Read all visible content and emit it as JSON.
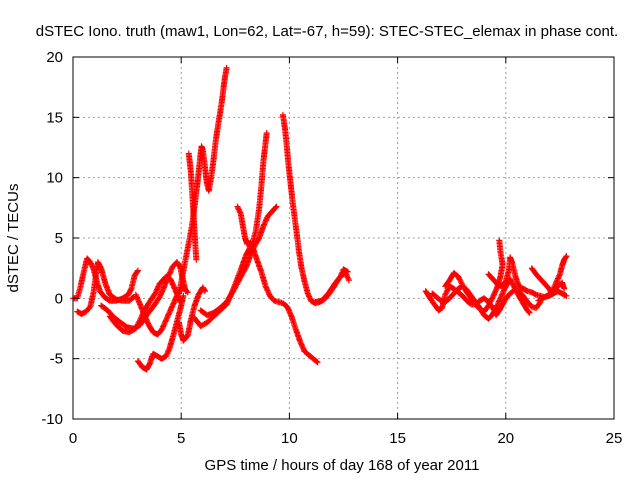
{
  "chart_data": {
    "type": "scatter",
    "title": "dSTEC Iono. truth (maw1, Lon=62, Lat=-67, h=59): STEC-STEC_elemax in phase cont.",
    "xlabel": "GPS time / hours of day 168 of year 2011",
    "ylabel": "dSTEC  / TECUs",
    "xlim": [
      0,
      25
    ],
    "ylim": [
      -10,
      20
    ],
    "xticks": [
      "0",
      "5",
      "10",
      "15",
      "20",
      "25"
    ],
    "yticks": [
      "-10",
      "-5",
      "0",
      "5",
      "10",
      "15",
      "20"
    ],
    "grid": true,
    "marker": "+",
    "color": "#ff0000",
    "tracks": [
      [
        [
          0.0,
          0.0
        ],
        [
          0.2,
          0.0
        ],
        [
          0.35,
          1.0
        ],
        [
          0.5,
          2.2
        ],
        [
          0.65,
          3.3
        ],
        [
          0.8,
          3.0
        ],
        [
          0.95,
          2.4
        ],
        [
          1.1,
          1.4
        ],
        [
          1.25,
          0.6
        ],
        [
          1.45,
          0.1
        ],
        [
          1.7,
          -0.2
        ],
        [
          2.0,
          -0.2
        ],
        [
          2.3,
          0.0
        ],
        [
          2.55,
          0.3
        ],
        [
          2.7,
          0.8
        ],
        [
          2.85,
          1.9
        ],
        [
          3.0,
          2.3
        ]
      ],
      [
        [
          0.2,
          -1.1
        ],
        [
          0.4,
          -1.3
        ],
        [
          0.6,
          -1.1
        ],
        [
          0.8,
          -0.7
        ],
        [
          0.95,
          0.5
        ],
        [
          1.05,
          1.8
        ],
        [
          1.15,
          3.0
        ],
        [
          1.3,
          2.5
        ],
        [
          1.5,
          1.2
        ],
        [
          1.7,
          0.3
        ],
        [
          2.0,
          -0.1
        ],
        [
          2.3,
          -0.2
        ],
        [
          2.6,
          -0.2
        ],
        [
          2.8,
          0.1
        ]
      ],
      [
        [
          1.3,
          -0.6
        ],
        [
          1.6,
          -1.0
        ],
        [
          1.9,
          -1.6
        ],
        [
          2.2,
          -2.0
        ],
        [
          2.5,
          -2.4
        ],
        [
          2.8,
          -2.5
        ],
        [
          3.1,
          -2.2
        ],
        [
          3.4,
          -1.4
        ],
        [
          3.7,
          -0.7
        ],
        [
          4.0,
          0.1
        ],
        [
          4.2,
          0.9
        ],
        [
          4.4,
          1.8
        ],
        [
          4.6,
          2.6
        ],
        [
          4.8,
          3.0
        ],
        [
          4.95,
          2.6
        ],
        [
          5.1,
          1.4
        ],
        [
          5.2,
          0.6
        ]
      ],
      [
        [
          1.7,
          -1.5
        ],
        [
          2.0,
          -2.2
        ],
        [
          2.3,
          -2.7
        ],
        [
          2.6,
          -2.8
        ],
        [
          2.9,
          -2.5
        ],
        [
          3.1,
          -1.8
        ],
        [
          3.3,
          -1.0
        ],
        [
          3.5,
          -0.4
        ],
        [
          3.8,
          0.4
        ],
        [
          4.0,
          1.2
        ],
        [
          4.3,
          1.8
        ],
        [
          4.5,
          1.6
        ],
        [
          4.75,
          0.6
        ],
        [
          4.95,
          -0.3
        ]
      ],
      [
        [
          2.9,
          0.3
        ],
        [
          3.1,
          -0.5
        ],
        [
          3.3,
          -1.4
        ],
        [
          3.5,
          -2.2
        ],
        [
          3.7,
          -2.8
        ],
        [
          3.9,
          -3.0
        ],
        [
          4.1,
          -2.6
        ],
        [
          4.3,
          -1.8
        ],
        [
          4.5,
          -1.0
        ],
        [
          4.7,
          -0.2
        ],
        [
          4.9,
          0.6
        ],
        [
          5.1,
          0.9
        ],
        [
          5.3,
          0.5
        ]
      ],
      [
        [
          3.0,
          -5.2
        ],
        [
          3.2,
          -5.7
        ],
        [
          3.4,
          -5.9
        ],
        [
          3.55,
          -5.4
        ],
        [
          3.7,
          -4.6
        ],
        [
          3.9,
          -4.8
        ],
        [
          4.1,
          -5.0
        ],
        [
          4.3,
          -4.8
        ],
        [
          4.45,
          -4.2
        ],
        [
          4.6,
          -3.3
        ],
        [
          4.75,
          -2.3
        ],
        [
          4.9,
          -1.3
        ],
        [
          5.0,
          -0.6
        ],
        [
          5.1,
          0.2
        ]
      ],
      [
        [
          4.9,
          -2.0
        ],
        [
          5.0,
          -3.0
        ],
        [
          5.1,
          -3.5
        ],
        [
          5.3,
          -3.1
        ],
        [
          5.45,
          -1.8
        ],
        [
          5.6,
          -0.7
        ],
        [
          5.8,
          0.3
        ],
        [
          6.0,
          0.9
        ],
        [
          6.1,
          0.6
        ]
      ],
      [
        [
          4.9,
          0.4
        ],
        [
          5.05,
          1.8
        ],
        [
          5.2,
          3.2
        ],
        [
          5.35,
          4.6
        ],
        [
          5.5,
          6.0
        ],
        [
          5.6,
          7.4
        ],
        [
          5.7,
          8.8
        ],
        [
          5.78,
          10.0
        ],
        [
          5.86,
          11.4
        ],
        [
          5.94,
          12.6
        ],
        [
          6.0,
          12.3
        ],
        [
          6.08,
          11.2
        ],
        [
          6.18,
          9.6
        ],
        [
          6.28,
          8.9
        ],
        [
          6.4,
          10.2
        ],
        [
          6.5,
          11.6
        ],
        [
          6.6,
          13.1
        ],
        [
          6.7,
          14.3
        ],
        [
          6.8,
          15.4
        ],
        [
          6.9,
          16.6
        ],
        [
          6.98,
          17.8
        ],
        [
          7.05,
          18.6
        ],
        [
          7.1,
          19.1
        ]
      ],
      [
        [
          5.35,
          12.0
        ],
        [
          5.45,
          10.4
        ],
        [
          5.5,
          9.0
        ],
        [
          5.55,
          7.6
        ],
        [
          5.6,
          6.0
        ],
        [
          5.65,
          4.5
        ],
        [
          5.7,
          3.2
        ]
      ],
      [
        [
          5.6,
          -1.6
        ],
        [
          5.9,
          -2.3
        ],
        [
          6.2,
          -2.0
        ],
        [
          6.5,
          -1.5
        ],
        [
          6.8,
          -1.0
        ],
        [
          7.1,
          -0.5
        ],
        [
          7.3,
          0.3
        ],
        [
          7.55,
          1.4
        ],
        [
          7.8,
          2.6
        ],
        [
          8.0,
          3.6
        ],
        [
          8.15,
          4.1
        ],
        [
          8.3,
          4.6
        ],
        [
          8.45,
          5.6
        ],
        [
          8.6,
          7.4
        ],
        [
          8.7,
          9.2
        ],
        [
          8.8,
          11.4
        ],
        [
          8.88,
          12.6
        ],
        [
          8.95,
          13.7
        ]
      ],
      [
        [
          5.9,
          -1.0
        ],
        [
          6.2,
          -1.4
        ],
        [
          6.5,
          -1.2
        ],
        [
          6.8,
          -0.8
        ],
        [
          7.1,
          -0.3
        ],
        [
          7.4,
          0.6
        ],
        [
          7.7,
          1.6
        ],
        [
          8.0,
          2.6
        ],
        [
          8.2,
          3.6
        ],
        [
          8.4,
          4.4
        ],
        [
          8.6,
          5.0
        ],
        [
          8.8,
          6.0
        ],
        [
          9.0,
          6.8
        ],
        [
          9.2,
          7.2
        ],
        [
          9.4,
          7.6
        ]
      ],
      [
        [
          7.6,
          7.6
        ],
        [
          7.75,
          7.0
        ],
        [
          7.85,
          6.0
        ],
        [
          7.95,
          5.0
        ],
        [
          8.05,
          4.5
        ],
        [
          8.2,
          4.6
        ],
        [
          8.35,
          4.0
        ],
        [
          8.5,
          3.2
        ],
        [
          8.7,
          2.2
        ],
        [
          8.9,
          1.0
        ],
        [
          9.1,
          0.2
        ],
        [
          9.3,
          -0.2
        ],
        [
          9.5,
          -0.3
        ],
        [
          9.7,
          -0.4
        ],
        [
          9.9,
          -0.7
        ],
        [
          10.1,
          -1.5
        ],
        [
          10.3,
          -2.6
        ],
        [
          10.5,
          -3.6
        ],
        [
          10.7,
          -4.4
        ],
        [
          10.9,
          -4.7
        ],
        [
          11.1,
          -5.0
        ],
        [
          11.3,
          -5.3
        ]
      ],
      [
        [
          9.7,
          15.2
        ],
        [
          9.8,
          14.0
        ],
        [
          9.88,
          12.6
        ],
        [
          9.95,
          11.2
        ],
        [
          10.05,
          9.6
        ],
        [
          10.15,
          8.0
        ],
        [
          10.25,
          6.6
        ],
        [
          10.35,
          5.2
        ],
        [
          10.45,
          3.8
        ],
        [
          10.55,
          2.6
        ],
        [
          10.7,
          1.4
        ],
        [
          10.85,
          0.4
        ],
        [
          11.0,
          -0.2
        ],
        [
          11.2,
          -0.4
        ],
        [
          11.4,
          -0.3
        ],
        [
          11.6,
          -0.1
        ],
        [
          11.8,
          0.3
        ],
        [
          12.0,
          0.8
        ],
        [
          12.2,
          1.4
        ],
        [
          12.4,
          1.9
        ],
        [
          12.6,
          2.1
        ],
        [
          12.75,
          1.5
        ]
      ],
      [
        [
          11.2,
          -0.3
        ],
        [
          11.5,
          -0.2
        ],
        [
          11.8,
          0.4
        ],
        [
          12.1,
          1.2
        ],
        [
          12.35,
          1.8
        ],
        [
          12.5,
          2.4
        ],
        [
          12.7,
          2.2
        ]
      ],
      [
        [
          16.3,
          0.6
        ],
        [
          16.5,
          0.0
        ],
        [
          16.7,
          -0.5
        ],
        [
          16.9,
          -1.0
        ],
        [
          17.05,
          -0.8
        ],
        [
          17.2,
          0.3
        ],
        [
          17.4,
          1.0
        ],
        [
          17.6,
          0.8
        ],
        [
          17.8,
          0.5
        ],
        [
          18.0,
          0.2
        ],
        [
          18.2,
          -0.2
        ],
        [
          18.4,
          -0.5
        ],
        [
          18.6,
          -0.5
        ],
        [
          18.8,
          -0.2
        ],
        [
          19.0,
          0.0
        ],
        [
          19.2,
          -0.3
        ],
        [
          19.4,
          -0.8
        ],
        [
          19.55,
          -1.4
        ],
        [
          19.7,
          -1.0
        ],
        [
          19.85,
          -0.5
        ],
        [
          20.0,
          0.0
        ],
        [
          20.2,
          0.4
        ],
        [
          20.4,
          0.7
        ],
        [
          20.6,
          0.6
        ],
        [
          20.8,
          0.2
        ],
        [
          21.0,
          -0.3
        ],
        [
          21.2,
          -0.7
        ],
        [
          21.4,
          -0.8
        ],
        [
          21.6,
          -0.3
        ]
      ],
      [
        [
          16.6,
          0.4
        ],
        [
          16.8,
          0.1
        ],
        [
          17.0,
          -0.2
        ],
        [
          17.2,
          -0.3
        ],
        [
          17.4,
          0.0
        ],
        [
          17.6,
          0.4
        ],
        [
          17.8,
          0.8
        ],
        [
          18.0,
          1.0
        ],
        [
          18.2,
          0.7
        ],
        [
          18.4,
          0.2
        ],
        [
          18.6,
          -0.3
        ],
        [
          18.8,
          -0.8
        ],
        [
          19.0,
          -1.4
        ],
        [
          19.2,
          -1.7
        ],
        [
          19.4,
          -1.3
        ],
        [
          19.6,
          -0.6
        ],
        [
          19.8,
          0.2
        ],
        [
          20.0,
          1.0
        ],
        [
          20.2,
          1.6
        ],
        [
          20.4,
          0.9
        ],
        [
          20.6,
          0.2
        ],
        [
          20.8,
          -0.4
        ],
        [
          21.0,
          -1.0
        ],
        [
          21.1,
          -1.2
        ]
      ],
      [
        [
          17.2,
          1.0
        ],
        [
          17.4,
          1.5
        ],
        [
          17.6,
          2.1
        ],
        [
          17.8,
          1.8
        ],
        [
          18.0,
          1.1
        ],
        [
          18.2,
          0.5
        ],
        [
          18.4,
          0.0
        ],
        [
          18.6,
          -0.5
        ],
        [
          18.8,
          -0.9
        ],
        [
          19.0,
          -1.1
        ],
        [
          19.2,
          -0.6
        ],
        [
          19.4,
          0.1
        ],
        [
          19.6,
          0.9
        ],
        [
          19.75,
          1.8
        ],
        [
          19.85,
          2.8
        ],
        [
          19.75,
          3.9
        ],
        [
          19.7,
          4.8
        ]
      ],
      [
        [
          19.2,
          2.0
        ],
        [
          19.4,
          1.6
        ],
        [
          19.6,
          1.2
        ],
        [
          19.8,
          1.0
        ],
        [
          20.0,
          1.4
        ],
        [
          20.15,
          2.4
        ],
        [
          20.2,
          3.4
        ],
        [
          20.3,
          2.9
        ],
        [
          20.45,
          1.8
        ],
        [
          20.6,
          1.0
        ],
        [
          20.8,
          0.8
        ],
        [
          21.0,
          0.6
        ],
        [
          21.2,
          0.5
        ],
        [
          21.4,
          0.3
        ],
        [
          21.6,
          0.2
        ],
        [
          21.8,
          0.1
        ],
        [
          22.0,
          0.2
        ],
        [
          22.2,
          0.4
        ],
        [
          22.4,
          0.6
        ],
        [
          22.6,
          0.4
        ],
        [
          22.8,
          0.2
        ]
      ],
      [
        [
          21.2,
          2.5
        ],
        [
          21.4,
          2.0
        ],
        [
          21.6,
          1.6
        ],
        [
          21.8,
          1.2
        ],
        [
          22.0,
          0.8
        ],
        [
          22.1,
          0.5
        ],
        [
          22.2,
          0.8
        ],
        [
          22.35,
          1.4
        ],
        [
          22.5,
          2.0
        ],
        [
          22.6,
          2.7
        ],
        [
          22.7,
          3.2
        ],
        [
          22.8,
          3.5
        ]
      ],
      [
        [
          21.5,
          -0.2
        ],
        [
          21.8,
          0.1
        ],
        [
          22.0,
          0.3
        ],
        [
          22.2,
          0.6
        ],
        [
          22.4,
          1.0
        ],
        [
          22.6,
          1.3
        ],
        [
          22.7,
          0.8
        ]
      ]
    ]
  }
}
